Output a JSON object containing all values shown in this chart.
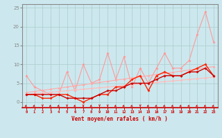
{
  "xlabel": "Vent moyen/en rafales ( km/h )",
  "background_color": "#cce8ee",
  "grid_color": "#aacccc",
  "xlim": [
    -0.5,
    23.5
  ],
  "ylim": [
    -1.5,
    26
  ],
  "yticks": [
    0,
    5,
    10,
    15,
    20,
    25
  ],
  "x": [
    0,
    1,
    2,
    3,
    4,
    5,
    6,
    7,
    8,
    9,
    10,
    11,
    12,
    13,
    14,
    15,
    16,
    17,
    18,
    19,
    20,
    21,
    22,
    23
  ],
  "line_gust_y": [
    7,
    4,
    3,
    2,
    2,
    8,
    3,
    10,
    5,
    6,
    13,
    6,
    12,
    4,
    9,
    5,
    9,
    13,
    9,
    9,
    11,
    18,
    24,
    16
  ],
  "line_gust_color": "#ff9999",
  "line_trend1_y": [
    2.5,
    2.8,
    3.1,
    3.4,
    3.7,
    4.0,
    4.3,
    4.6,
    4.9,
    5.2,
    5.5,
    5.8,
    6.1,
    6.4,
    6.7,
    7.0,
    7.3,
    7.6,
    7.9,
    8.2,
    8.5,
    8.8,
    9.1,
    9.4
  ],
  "line_trend1_color": "#ffaaaa",
  "line_trend2_y": [
    2.0,
    2.2,
    2.4,
    2.6,
    2.8,
    3.0,
    3.2,
    3.4,
    3.6,
    3.8,
    4.0,
    4.2,
    4.4,
    4.6,
    4.8,
    5.0,
    5.2,
    5.4,
    5.6,
    5.8,
    6.0,
    6.2,
    6.4,
    6.6
  ],
  "line_trend2_color": "#ffbbbb",
  "line_mean_y": [
    2,
    2,
    1,
    1,
    2,
    2,
    1,
    0,
    1,
    2,
    2,
    4,
    4,
    6,
    7,
    3,
    7,
    8,
    7,
    7,
    8,
    9,
    10,
    7
  ],
  "line_mean_color": "#ff2200",
  "line_mean2_y": [
    2,
    2,
    2,
    2,
    2,
    1,
    1,
    1,
    1,
    2,
    3,
    3,
    4,
    5,
    5,
    5,
    6,
    7,
    7,
    7,
    8,
    8,
    9,
    7
  ],
  "line_mean2_color": "#cc0000",
  "wind_arrows_x": [
    0,
    1,
    2,
    3,
    4,
    5,
    6,
    7,
    8,
    9,
    10,
    11,
    12,
    13,
    14,
    15,
    16,
    17,
    18,
    19,
    20,
    21,
    22,
    23
  ],
  "wind_angles": [
    225,
    225,
    270,
    225,
    225,
    270,
    225,
    270,
    225,
    270,
    270,
    225,
    225,
    225,
    270,
    225,
    225,
    225,
    225,
    225,
    225,
    225,
    225,
    225
  ]
}
